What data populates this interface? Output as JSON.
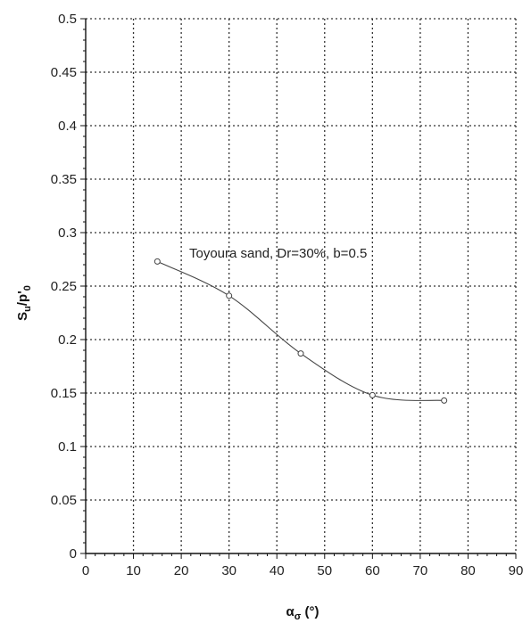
{
  "chart_data": {
    "type": "line",
    "xlabel": "α",
    "xlabel_sub": "σ",
    "xlabel_unit": " (°)",
    "ylabel": "S",
    "ylabel_sub": "u",
    "ylabel_mid": "/p'",
    "ylabel_sub2": "0",
    "xlim": [
      0,
      90
    ],
    "ylim": [
      0,
      0.5
    ],
    "x_ticks": [
      0,
      10,
      20,
      30,
      40,
      50,
      60,
      70,
      80,
      90
    ],
    "x_tick_labels": [
      "0",
      "10",
      "20",
      "30",
      "40",
      "50",
      "60",
      "70",
      "80",
      "90"
    ],
    "y_ticks": [
      0,
      0.05,
      0.1,
      0.15,
      0.2,
      0.25,
      0.3,
      0.35,
      0.4,
      0.45,
      0.5
    ],
    "y_tick_labels": [
      "0",
      "0.05",
      "0.1",
      "0.15",
      "0.2",
      "0.25",
      "0.3",
      "0.35",
      "0.4",
      "0.45",
      "0.5"
    ],
    "grid": true,
    "annotation": "Toyoura sand, Dr=30%, b=0.5",
    "series": [
      {
        "x": [
          15,
          30,
          45,
          60,
          75
        ],
        "y": [
          0.273,
          0.241,
          0.187,
          0.148,
          0.143
        ],
        "color": "#444444"
      }
    ]
  }
}
